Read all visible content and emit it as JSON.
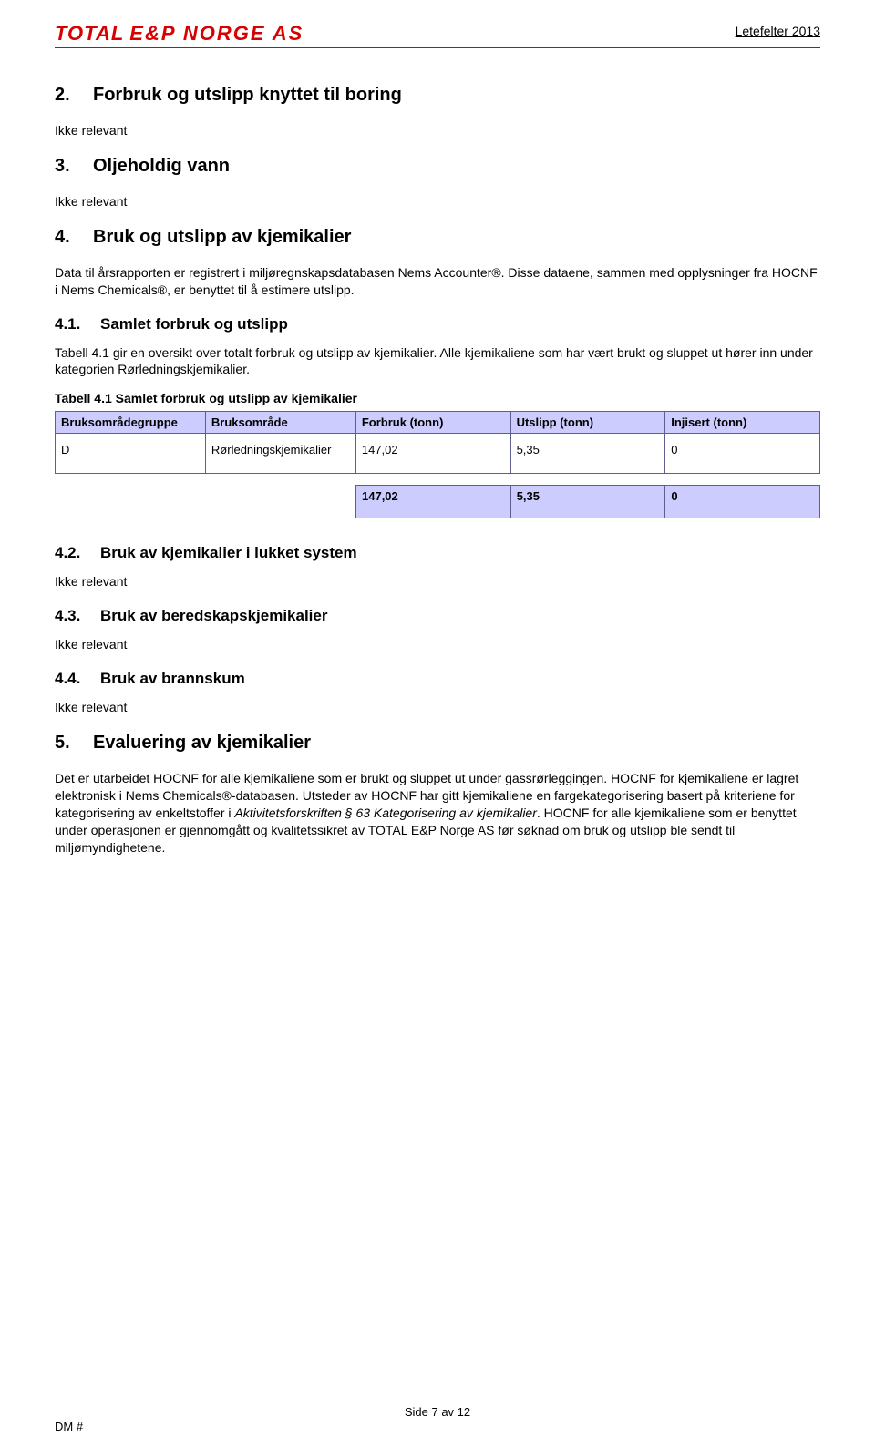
{
  "header": {
    "logo_main": "TOTAL",
    "logo_sub": "E&P NORGE AS",
    "right_label": "Letefelter 2013"
  },
  "sections": {
    "s2": {
      "num": "2.",
      "title": "Forbruk og utslipp knyttet til boring",
      "note": "Ikke relevant"
    },
    "s3": {
      "num": "3.",
      "title": "Oljeholdig vann",
      "note": "Ikke relevant"
    },
    "s4": {
      "num": "4.",
      "title": "Bruk og utslipp av kjemikalier",
      "intro": "Data til årsrapporten er registrert i miljøregnskapsdatabasen Nems Accounter®. Disse dataene, sammen med opplysninger fra HOCNF i Nems Chemicals®, er benyttet til å estimere utslipp.",
      "s41": {
        "num": "4.1.",
        "title": "Samlet forbruk og utslipp",
        "p1": "Tabell 4.1 gir en oversikt over totalt forbruk og utslipp av kjemikalier. Alle kjemikaliene som har vært brukt og sluppet ut hører inn under kategorien Rørledningskjemikalier.",
        "table_title": "Tabell 4.1 Samlet forbruk og utslipp av kjemikalier"
      },
      "s42": {
        "num": "4.2.",
        "title": "Bruk av kjemikalier i lukket system",
        "note": "Ikke relevant"
      },
      "s43": {
        "num": "4.3.",
        "title": "Bruk av beredskapskjemikalier",
        "note": "Ikke relevant"
      },
      "s44": {
        "num": "4.4.",
        "title": "Bruk av brannskum",
        "note": "Ikke relevant"
      }
    },
    "s5": {
      "num": "5.",
      "title": "Evaluering av kjemikalier",
      "p1a": "Det er utarbeidet HOCNF for alle kjemikaliene som er brukt og sluppet ut under gassrørleggingen. HOCNF for kjemikaliene er lagret elektronisk i Nems Chemicals®-databasen. Utsteder av HOCNF har gitt kjemikaliene en fargekategorisering basert på kriteriene for kategorisering av enkeltstoffer i ",
      "p1_italic": "Aktivitetsforskriften § 63 Kategorisering av kjemikalier",
      "p1b": ". HOCNF for alle kjemikaliene som er benyttet under operasjonen er gjennomgått og kvalitetssikret av TOTAL E&P Norge AS før søknad om bruk og utslipp ble sendt til miljømyndighetene."
    }
  },
  "table41": {
    "columns": [
      "Bruksområdegruppe",
      "Bruksområde",
      "Forbruk (tonn)",
      "Utslipp (tonn)",
      "Injisert (tonn)"
    ],
    "row": {
      "c1": "D",
      "c2": "Rørledningskjemikalier",
      "c3": "147,02",
      "c4": "5,35",
      "c5": "0"
    },
    "totals": {
      "c3": "147,02",
      "c4": "5,35",
      "c5": "0"
    },
    "colors": {
      "header_bg": "#ccccff",
      "border": "#5f5f8f"
    }
  },
  "footer": {
    "page": "Side 7 av 12",
    "dm": "DM #"
  }
}
